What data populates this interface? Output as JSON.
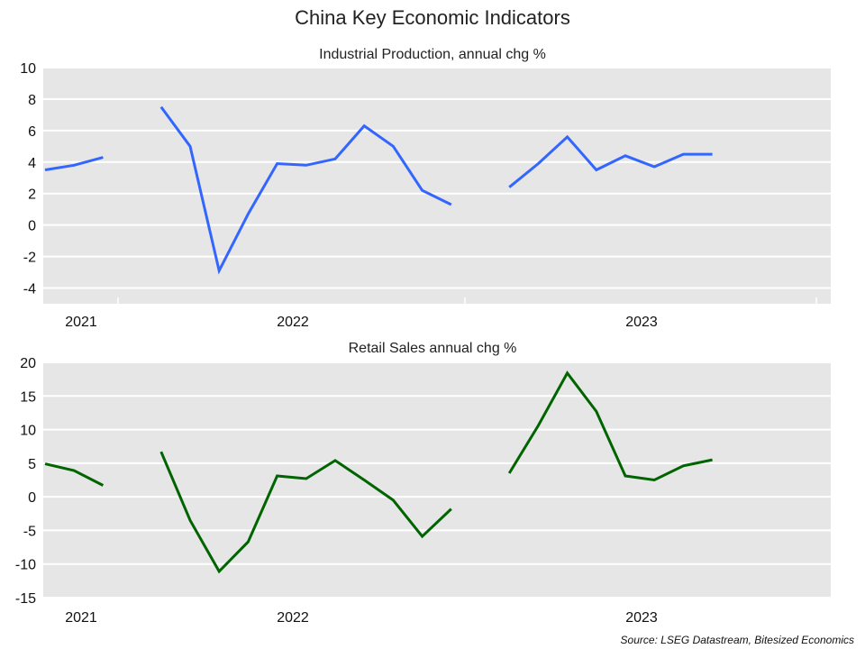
{
  "title": "China Key Economic Indicators",
  "source": "Source: LSEG Datastream, Bitesized Economics",
  "chart_data": [
    {
      "type": "line",
      "title": "Industrial Production, annual chg %",
      "ylim": [
        -5,
        10
      ],
      "yticks": [
        10,
        8,
        6,
        4,
        2,
        0,
        -2,
        -4
      ],
      "year_labels": [
        "2021",
        "2022",
        "2023"
      ],
      "grid": true,
      "series": [
        {
          "color": "#3366ff",
          "values": [
            3.5,
            3.8,
            4.3,
            null,
            7.5,
            5.0,
            -2.9,
            0.7,
            3.9,
            3.8,
            4.2,
            6.3,
            5.0,
            2.2,
            1.3,
            null,
            2.4,
            3.9,
            5.6,
            3.5,
            4.4,
            3.7,
            4.5,
            4.5
          ]
        }
      ]
    },
    {
      "type": "line",
      "title": "Retail Sales annual chg %",
      "ylim": [
        -15,
        20
      ],
      "yticks": [
        20,
        15,
        10,
        5,
        0,
        -5,
        -10,
        -15
      ],
      "year_labels": [
        "2021",
        "2022",
        "2023"
      ],
      "grid": true,
      "series": [
        {
          "color": "#006400",
          "values": [
            4.9,
            3.9,
            1.7,
            null,
            6.7,
            -3.5,
            -11.1,
            -6.7,
            3.1,
            2.7,
            5.4,
            2.5,
            -0.5,
            -5.9,
            -1.8,
            null,
            3.5,
            10.6,
            18.4,
            12.7,
            3.1,
            2.5,
            4.6,
            5.5
          ]
        }
      ]
    }
  ]
}
